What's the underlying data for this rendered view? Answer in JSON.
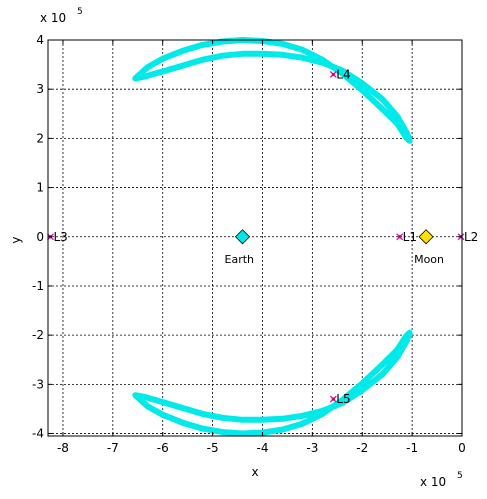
{
  "chart_data": {
    "type": "scatter",
    "xlabel": "x",
    "ylabel": "y",
    "x_scale_label": {
      "base": "x 10",
      "exp": "5"
    },
    "y_scale_label": {
      "base": "x 10",
      "exp": "5"
    },
    "xlim": [
      -8.3,
      0
    ],
    "ylim": [
      -4.05,
      4
    ],
    "xticks": [
      -8,
      -7,
      -6,
      -5,
      -4,
      -3,
      -2,
      -1,
      0
    ],
    "yticks": [
      -4,
      -3,
      -2,
      -1,
      0,
      1,
      2,
      3,
      4
    ],
    "grid": true,
    "grid_style": "dashed",
    "colors": {
      "trajectory": "#00EAEA",
      "earth": "#00E5E5",
      "moon": "#FFE000",
      "lagrange_marker": "#E0004A",
      "lagrange_cross": "#D000D0"
    },
    "bodies": [
      {
        "name": "Earth",
        "x": -4.4,
        "y": 0,
        "marker": "diamond"
      },
      {
        "name": "Moon",
        "x": -0.72,
        "y": 0,
        "marker": "diamond"
      }
    ],
    "lagrange_points": [
      {
        "name": "L1",
        "x": -1.25,
        "y": 0
      },
      {
        "name": "L2",
        "x": -0.02,
        "y": 0
      },
      {
        "name": "L3",
        "x": -8.25,
        "y": 0
      },
      {
        "name": "L4",
        "x": -2.58,
        "y": 3.3
      },
      {
        "name": "L5",
        "x": -2.58,
        "y": -3.3
      }
    ],
    "series": [
      {
        "points": [
          [
            -6.55,
            3.22
          ],
          [
            -6.3,
            3.45
          ],
          [
            -6.0,
            3.62
          ],
          [
            -5.6,
            3.78
          ],
          [
            -5.2,
            3.9
          ],
          [
            -4.8,
            3.97
          ],
          [
            -4.4,
            4.0
          ],
          [
            -4.0,
            3.98
          ],
          [
            -3.6,
            3.92
          ],
          [
            -3.2,
            3.8
          ],
          [
            -2.8,
            3.6
          ],
          [
            -2.4,
            3.32
          ],
          [
            -2.0,
            2.98
          ],
          [
            -1.6,
            2.6
          ],
          [
            -1.3,
            2.3
          ],
          [
            -1.12,
            2.02
          ],
          [
            -1.05,
            1.95
          ],
          [
            -1.1,
            2.1
          ],
          [
            -1.3,
            2.45
          ],
          [
            -1.6,
            2.8
          ],
          [
            -2.0,
            3.12
          ],
          [
            -2.4,
            3.38
          ],
          [
            -2.8,
            3.54
          ],
          [
            -3.2,
            3.64
          ],
          [
            -3.6,
            3.7
          ],
          [
            -4.0,
            3.72
          ],
          [
            -4.4,
            3.72
          ],
          [
            -4.8,
            3.68
          ],
          [
            -5.2,
            3.6
          ],
          [
            -5.6,
            3.48
          ],
          [
            -6.0,
            3.36
          ],
          [
            -6.35,
            3.26
          ],
          [
            -6.55,
            3.22
          ]
        ]
      },
      {
        "points": [
          [
            -6.55,
            -3.22
          ],
          [
            -6.3,
            -3.45
          ],
          [
            -6.0,
            -3.62
          ],
          [
            -5.6,
            -3.78
          ],
          [
            -5.2,
            -3.9
          ],
          [
            -4.8,
            -3.97
          ],
          [
            -4.4,
            -4.0
          ],
          [
            -4.0,
            -3.98
          ],
          [
            -3.6,
            -3.92
          ],
          [
            -3.2,
            -3.8
          ],
          [
            -2.8,
            -3.6
          ],
          [
            -2.4,
            -3.32
          ],
          [
            -2.0,
            -2.98
          ],
          [
            -1.6,
            -2.6
          ],
          [
            -1.3,
            -2.3
          ],
          [
            -1.12,
            -2.02
          ],
          [
            -1.05,
            -1.95
          ],
          [
            -1.1,
            -2.1
          ],
          [
            -1.3,
            -2.45
          ],
          [
            -1.6,
            -2.8
          ],
          [
            -2.0,
            -3.12
          ],
          [
            -2.4,
            -3.38
          ],
          [
            -2.8,
            -3.54
          ],
          [
            -3.2,
            -3.64
          ],
          [
            -3.6,
            -3.7
          ],
          [
            -4.0,
            -3.72
          ],
          [
            -4.4,
            -3.72
          ],
          [
            -4.8,
            -3.68
          ],
          [
            -5.2,
            -3.6
          ],
          [
            -5.6,
            -3.48
          ],
          [
            -6.0,
            -3.36
          ],
          [
            -6.35,
            -3.26
          ],
          [
            -6.55,
            -3.22
          ]
        ]
      }
    ]
  }
}
